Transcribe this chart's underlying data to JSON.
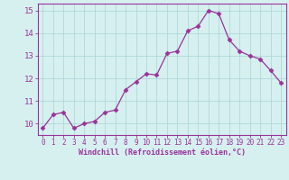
{
  "x": [
    0,
    1,
    2,
    3,
    4,
    5,
    6,
    7,
    8,
    9,
    10,
    11,
    12,
    13,
    14,
    15,
    16,
    17,
    18,
    19,
    20,
    21,
    22,
    23
  ],
  "y": [
    9.8,
    10.4,
    10.5,
    9.8,
    10.0,
    10.1,
    10.5,
    10.6,
    11.5,
    11.85,
    12.2,
    12.15,
    13.1,
    13.2,
    14.1,
    14.3,
    15.0,
    14.85,
    13.7,
    13.2,
    13.0,
    12.85,
    12.35,
    11.8
  ],
  "line_color": "#993399",
  "marker": "D",
  "marker_size": 2.5,
  "xlabel": "Windchill (Refroidissement éolien,°C)",
  "ylim": [
    9.5,
    15.3
  ],
  "xlim": [
    -0.5,
    23.5
  ],
  "yticks": [
    10,
    11,
    12,
    13,
    14,
    15
  ],
  "xticks": [
    0,
    1,
    2,
    3,
    4,
    5,
    6,
    7,
    8,
    9,
    10,
    11,
    12,
    13,
    14,
    15,
    16,
    17,
    18,
    19,
    20,
    21,
    22,
    23
  ],
  "background_color": "#d6f0f0",
  "grid_color": "#b0d8d8",
  "tick_color": "#993399",
  "label_color": "#993399",
  "font_family": "monospace"
}
